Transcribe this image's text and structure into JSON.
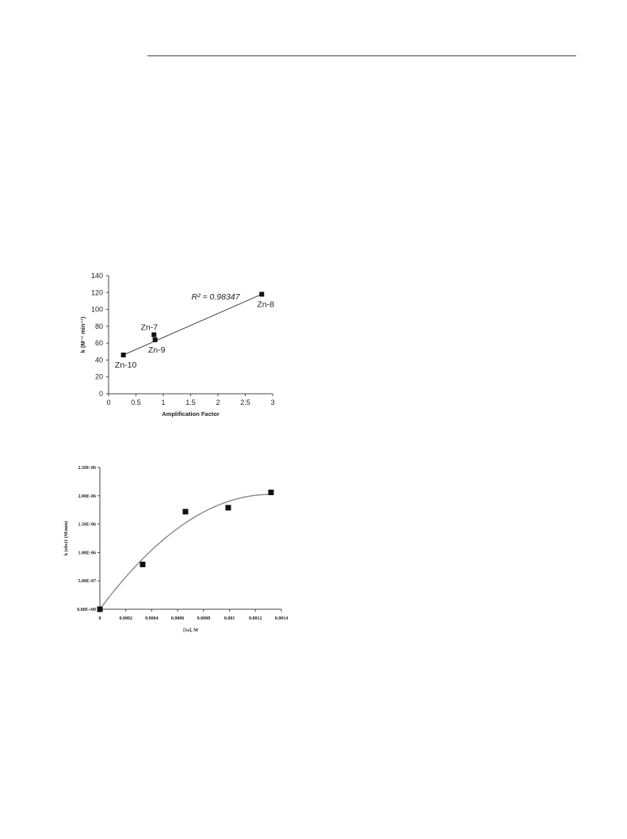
{
  "chart_data": [
    {
      "type": "scatter",
      "xlabel": "Amplification Factor",
      "ylabel": "k (M⁻¹ min⁻¹)",
      "xlim": [
        0,
        3
      ],
      "ylim": [
        0,
        140
      ],
      "xticks": [
        "0",
        "0.5",
        "1",
        "1.5",
        "2",
        "2.5",
        "3"
      ],
      "yticks": [
        "0",
        "20",
        "40",
        "60",
        "80",
        "100",
        "120",
        "140"
      ],
      "grid": false,
      "points": [
        {
          "x": 0.27,
          "y": 46,
          "label": "Zn-10"
        },
        {
          "x": 0.83,
          "y": 70,
          "label": "Zn-7"
        },
        {
          "x": 0.85,
          "y": 64,
          "label": "Zn-9"
        },
        {
          "x": 2.8,
          "y": 118,
          "label": "Zn-8"
        }
      ],
      "trendline": {
        "type": "linear",
        "x": [
          0.27,
          2.8
        ],
        "y": [
          46,
          118
        ]
      },
      "annotation": "R² = 0.98347"
    },
    {
      "type": "scatter",
      "xlabel": "[1a], M",
      "ylabel": "k (obs)1 (M/min)",
      "xlim": [
        0,
        0.0014
      ],
      "ylim": [
        0,
        2.5e-06
      ],
      "xticks": [
        "0",
        "0.0002",
        "0.0004",
        "0.0006",
        "0.0008",
        "0.001",
        "0.0012",
        "0.0014"
      ],
      "yticks": [
        "0.00E+00",
        "5.00E-07",
        "1.00E-06",
        "1.50E-06",
        "2.00E-06",
        "2.50E-06"
      ],
      "grid": false,
      "points": [
        {
          "x": 0,
          "y": 0
        },
        {
          "x": 0.00033,
          "y": 7.9e-07
        },
        {
          "x": 0.00066,
          "y": 1.72e-06
        },
        {
          "x": 0.00099,
          "y": 1.79e-06
        },
        {
          "x": 0.00132,
          "y": 2.06e-06
        }
      ],
      "trendline": {
        "type": "polynomial",
        "order": 2,
        "coef": [
          0,
          0.003078,
          -1.17
        ]
      }
    }
  ]
}
